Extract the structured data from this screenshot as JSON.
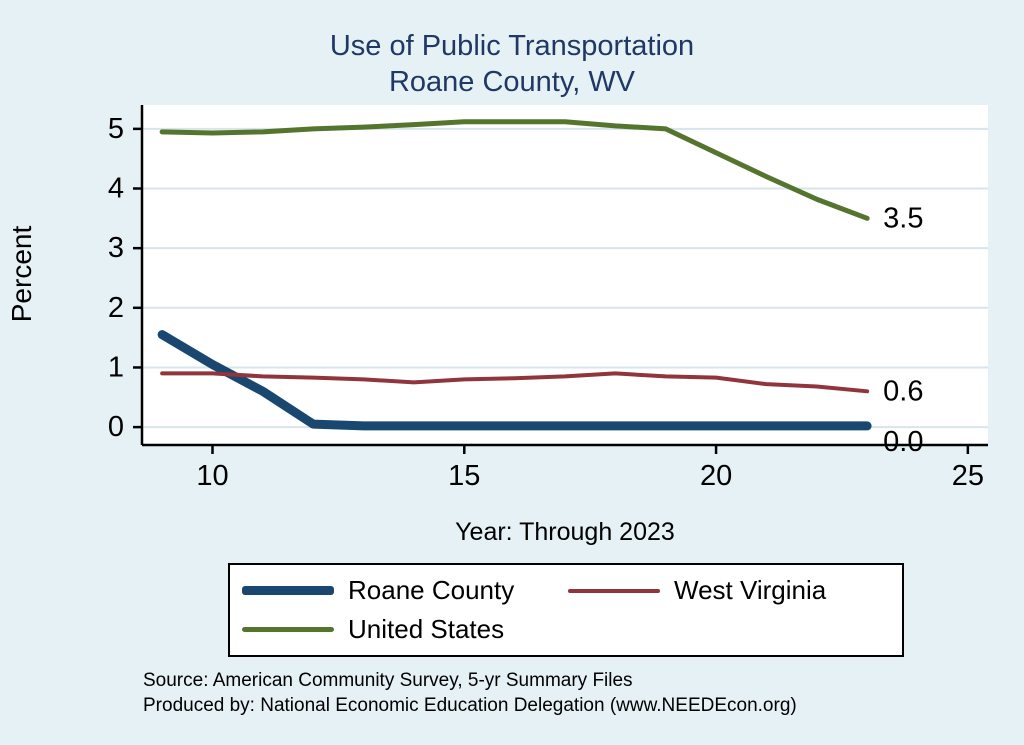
{
  "title": {
    "line1": "Use of Public Transportation",
    "line2": "Roane County, WV"
  },
  "chart_data": {
    "type": "line",
    "x": [
      9,
      10,
      11,
      12,
      13,
      14,
      15,
      16,
      17,
      18,
      19,
      20,
      21,
      22,
      23
    ],
    "series": [
      {
        "name": "Roane County",
        "color": "#1a476f",
        "width": 9,
        "values": [
          1.55,
          1.05,
          0.6,
          0.05,
          0.02,
          0.02,
          0.02,
          0.02,
          0.02,
          0.02,
          0.02,
          0.02,
          0.02,
          0.02,
          0.02
        ],
        "end_label": "0.0",
        "end_label_dy": 16
      },
      {
        "name": "West Virginia",
        "color": "#90353b",
        "width": 4,
        "values": [
          0.9,
          0.9,
          0.85,
          0.83,
          0.8,
          0.75,
          0.8,
          0.82,
          0.85,
          0.9,
          0.85,
          0.83,
          0.72,
          0.68,
          0.6
        ],
        "end_label": "0.6",
        "end_label_dy": 0
      },
      {
        "name": "United States",
        "color": "#55752f",
        "width": 5,
        "values": [
          4.95,
          4.93,
          4.95,
          5.0,
          5.03,
          5.07,
          5.12,
          5.12,
          5.12,
          5.05,
          5.0,
          4.6,
          4.2,
          3.82,
          3.5
        ],
        "end_label": "3.5",
        "end_label_dy": 0
      }
    ],
    "ylabel": "Percent",
    "xlabel": "Year: Through 2023",
    "yticks": [
      0,
      1,
      2,
      3,
      4,
      5
    ],
    "xticks": [
      10,
      15,
      20,
      25
    ],
    "xlim": [
      8.6,
      25.4
    ],
    "ylim": [
      -0.3,
      5.4
    ],
    "grid": true,
    "legend_position": "bottom"
  },
  "notes": {
    "source": "Source: American Community Survey, 5-yr Summary Files",
    "produced": "Produced by: National Economic Education Delegation (www.NEEDEcon.org)"
  },
  "colors": {
    "background": "#e6f1f6",
    "plot_bg": "#ffffff",
    "grid": "#d6e6ec",
    "axis": "#000000",
    "title": "#1f3864"
  }
}
